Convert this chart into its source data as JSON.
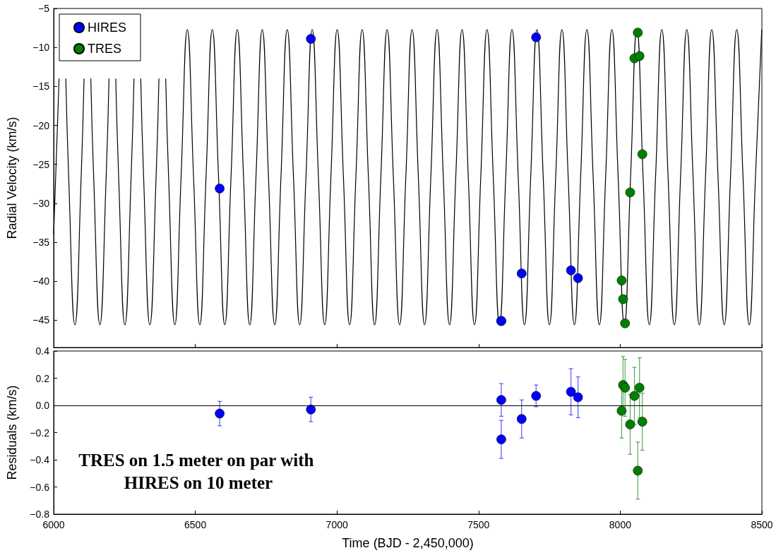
{
  "chart_data": [
    {
      "type": "scatter",
      "ylabel": "Radial Velocity (km/s)",
      "xlim": [
        6000,
        8500
      ],
      "xticks": [
        6000,
        6500,
        7000,
        7500,
        8000,
        8500
      ],
      "ylim": [
        -48.5,
        -5
      ],
      "yticks": [
        {
          "value": -5,
          "label": "−5"
        },
        {
          "value": -10,
          "label": "−10"
        },
        {
          "value": -15,
          "label": "−15"
        },
        {
          "value": -20,
          "label": "−20"
        },
        {
          "value": -25,
          "label": "−25"
        },
        {
          "value": -30,
          "label": "−30"
        },
        {
          "value": -35,
          "label": "−35"
        },
        {
          "value": -40,
          "label": "−40"
        },
        {
          "value": -45,
          "label": "−45"
        }
      ],
      "tick_labels": "y",
      "legend": "top left",
      "marker": "circle",
      "series": [
        {
          "type": "line",
          "color": "#000000",
          "marker": "none",
          "line_style": "solid",
          "x": [
            6000,
            6019.1,
            6031.0,
            6042.9,
            6053.0,
            6075.1,
            6097.1,
            6107.3,
            6119.2,
            6131.1,
            6141.2,
            6163.2,
            6185.3,
            6195.4,
            6207.3,
            6219.2,
            6229.4,
            6251.4,
            6273.4,
            6283.6,
            6295.5,
            6307.4,
            6317.5,
            6339.6,
            6361.6,
            6371.7,
            6383.6,
            6395.5,
            6405.7,
            6427.7,
            6449.8,
            6471.8,
            6493.8,
            6515.9,
            6537.9,
            6560.0,
            6582.0,
            6604.0,
            6626.1,
            6648.1,
            6670.2,
            6692.2,
            6714.2,
            6736.3,
            6758.3,
            6780.4,
            6802.4,
            6824.4,
            6846.5,
            6868.5,
            6890.6,
            6912.6,
            6934.6,
            6956.7,
            6978.7,
            7000.8,
            7022.8,
            7044.8,
            7066.9,
            7088.9,
            7111.0,
            7133.0,
            7155.0,
            7177.1,
            7199.1,
            7221.2,
            7243.2,
            7265.2,
            7287.3,
            7309.3,
            7331.4,
            7353.4,
            7375.4,
            7397.5,
            7419.5,
            7441.6,
            7463.6,
            7485.6,
            7507.7,
            7529.7,
            7551.8,
            7573.8,
            7595.8,
            7617.9,
            7639.9,
            7662.0,
            7684.0,
            7706.0,
            7728.1,
            7750.1,
            7772.2,
            7794.2,
            7816.2,
            7838.3,
            7860.3,
            7882.4,
            7904.4,
            7926.4,
            7948.5,
            7970.5,
            7992.6,
            8014.6,
            8036.6,
            8058.7,
            8080.7,
            8102.8,
            8124.8,
            8146.8,
            8168.9,
            8190.9,
            8213.0,
            8235.0,
            8257.0,
            8279.1,
            8301.1,
            8323.2,
            8345.2,
            8367.2,
            8389.3,
            8411.3,
            8433.4,
            8455.4,
            8477.4,
            8499.5
          ],
          "values": [
            -34,
            -14,
            null,
            -14,
            -26.6,
            -45.6,
            -26.6,
            -14,
            null,
            -14,
            -26.6,
            -45.6,
            -26.6,
            -14,
            null,
            -14,
            -26.6,
            -45.6,
            -26.6,
            -14,
            null,
            -14,
            -26.6,
            -45.6,
            -26.6,
            -14,
            null,
            -14,
            -26.6,
            -45.6,
            -26.6,
            -7.7,
            -26.6,
            -45.6,
            -26.6,
            -7.7,
            -26.6,
            -45.6,
            -26.6,
            -7.7,
            -26.6,
            -45.6,
            -26.6,
            -7.7,
            -26.6,
            -45.6,
            -26.6,
            -7.7,
            -26.6,
            -45.6,
            -26.6,
            -7.7,
            -26.6,
            -45.6,
            -26.6,
            -7.7,
            -26.6,
            -45.6,
            -26.6,
            -7.7,
            -26.6,
            -45.6,
            -26.6,
            -7.7,
            -26.6,
            -45.6,
            -26.6,
            -7.7,
            -26.6,
            -45.6,
            -26.6,
            -7.7,
            -26.6,
            -45.6,
            -26.6,
            -7.7,
            -26.6,
            -45.6,
            -26.6,
            -7.7,
            -26.6,
            -45.6,
            -26.6,
            -7.7,
            -26.6,
            -45.6,
            -26.6,
            -7.7,
            -26.6,
            -45.6,
            -26.6,
            -7.7,
            -26.6,
            -45.6,
            -26.6,
            -7.7,
            -26.6,
            -45.6,
            -26.6,
            -7.7,
            -26.6,
            -45.6,
            -26.6,
            -7.7,
            -26.6,
            -45.6,
            -26.6,
            -7.7,
            -26.6,
            -45.6,
            -26.6,
            -7.7,
            -26.6,
            -45.6,
            -26.6,
            -7.7,
            -26.6,
            -45.6,
            -26.6,
            -7.7,
            -26.6,
            -45.6,
            -26.6,
            -7.7
          ]
        },
        {
          "name": "HIRES",
          "color": "#0000ff",
          "x": [
            6586,
            6908,
            7580,
            7580,
            7652,
            7703,
            7826,
            7851
          ],
          "values": [
            -28.1,
            -8.9,
            -45.1,
            -45.1,
            -39.0,
            -8.7,
            -38.6,
            -39.6
          ]
        },
        {
          "name": "TRES",
          "color": "#008000",
          "x": [
            8005,
            8010,
            8017,
            8035,
            8050,
            8062,
            8068,
            8078
          ],
          "values": [
            -39.9,
            -42.3,
            -45.4,
            -28.6,
            -11.4,
            -8.1,
            -11.1,
            -23.7
          ]
        }
      ]
    },
    {
      "type": "scatter",
      "xlabel": "Time (BJD - 2,450,000)",
      "ylabel": "Residuals (km/s)",
      "xlim": [
        6000,
        8500
      ],
      "xticks": [
        6000,
        6500,
        7000,
        7500,
        8000,
        8500
      ],
      "ylim": [
        -0.8,
        0.4
      ],
      "yticks": [
        0.4,
        0.2,
        {
          "value": 0,
          "label": "0.0"
        },
        {
          "value": -0.2,
          "label": "−0.2"
        },
        {
          "value": -0.4,
          "label": "−0.4"
        },
        {
          "value": -0.6,
          "label": "−0.6"
        },
        {
          "value": -0.8,
          "label": "−0.8"
        }
      ],
      "marker": "circle",
      "ref_lines": [
        {
          "axis": "y",
          "value": 0,
          "color": "#000000"
        }
      ],
      "annotations": [
        "TRES on 1.5 meter on par with HIRES on 10 meter"
      ],
      "series": [
        {
          "color": "#0000ff",
          "x": [
            6586,
            6908,
            7580,
            7580,
            7652,
            7703,
            7826,
            7851
          ],
          "values": [
            -0.06,
            -0.03,
            0.04,
            -0.25,
            -0.1,
            0.07,
            0.1,
            0.06
          ],
          "errors": [
            0.09,
            0.09,
            0.12,
            0.14,
            0.14,
            0.08,
            0.17,
            0.15
          ]
        },
        {
          "color": "#008000",
          "x": [
            8005,
            8010,
            8017,
            8035,
            8050,
            8062,
            8068,
            8078
          ],
          "values": [
            -0.04,
            0.15,
            0.13,
            -0.14,
            0.07,
            -0.48,
            0.13,
            -0.12
          ],
          "errors": [
            0.2,
            0.21,
            0.21,
            0.22,
            0.21,
            0.21,
            0.22,
            0.21
          ]
        }
      ]
    }
  ]
}
